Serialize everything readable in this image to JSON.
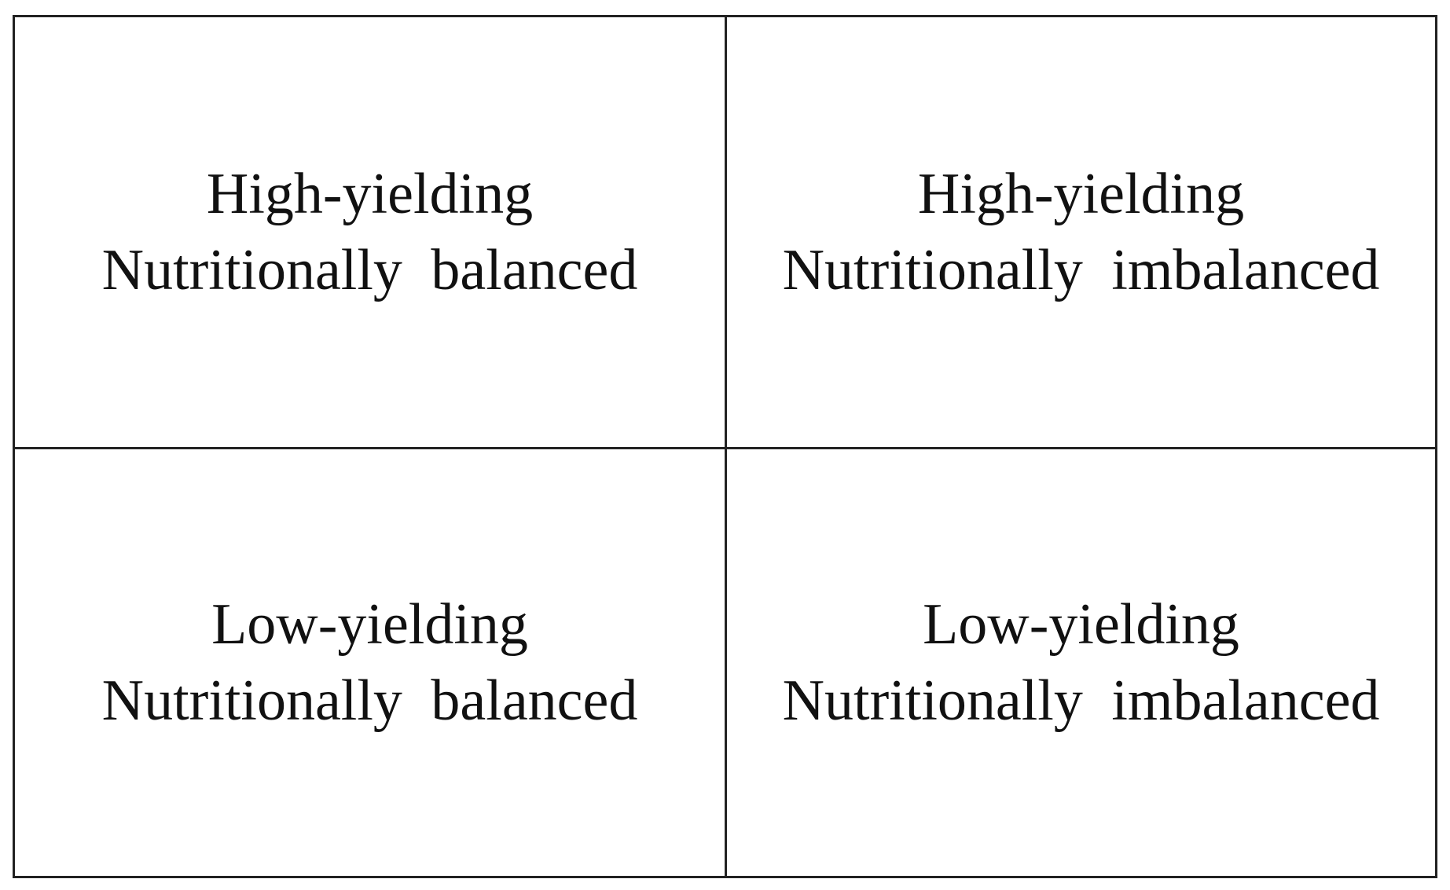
{
  "cells": [
    {
      "yield": "High-yielding",
      "nutrition": "Nutritionally balanced"
    },
    {
      "yield": "High-yielding",
      "nutrition": "Nutritionally imbalanced"
    },
    {
      "yield": "Low-yielding",
      "nutrition": "Nutritionally balanced"
    },
    {
      "yield": "Low-yielding",
      "nutrition": "Nutritionally imbalanced"
    }
  ]
}
